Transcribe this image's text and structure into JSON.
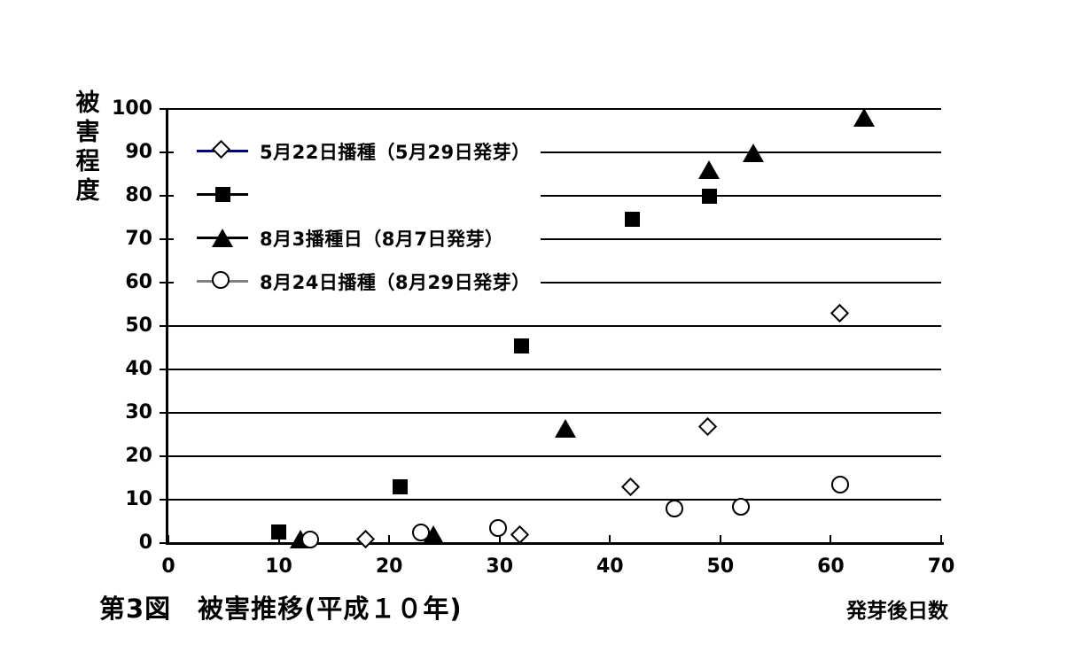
{
  "figure": {
    "title": "第3図　被害推移(平成１０年)",
    "y_axis_title": "被害程度",
    "x_axis_unit": "発芽後日数"
  },
  "chart_data": {
    "type": "scatter",
    "title": "第3図　被害推移(平成１０年)",
    "xlabel": "発芽後日数",
    "ylabel": "被害程度",
    "xlim": [
      0,
      70
    ],
    "ylim": [
      0,
      100
    ],
    "x_ticks": [
      0,
      10,
      20,
      30,
      40,
      50,
      60,
      70
    ],
    "y_ticks": [
      0,
      10,
      20,
      30,
      40,
      50,
      60,
      70,
      80,
      90,
      100
    ],
    "grid": "horizontal",
    "legend_position": "upper-left-inside",
    "series": [
      {
        "name": "5月22日播種（5月29日発芽）",
        "marker": "diamond",
        "line_color": "#000080",
        "points": [
          [
            18,
            0.5
          ],
          [
            32,
            1.5
          ],
          [
            42,
            12.5
          ],
          [
            49,
            26.5
          ],
          [
            61,
            52.5
          ]
        ]
      },
      {
        "name": "",
        "marker": "square",
        "line_color": "#000000",
        "points": [
          [
            10,
            2.5
          ],
          [
            21,
            13
          ],
          [
            32,
            45.5
          ],
          [
            42,
            74.5
          ],
          [
            49,
            80
          ]
        ]
      },
      {
        "name": "8月3播種日（8月7日発芽）",
        "marker": "triangle",
        "line_color": "#000000",
        "points": [
          [
            12,
            1
          ],
          [
            24,
            2
          ],
          [
            36,
            26.5
          ],
          [
            49,
            86
          ],
          [
            53,
            90
          ],
          [
            63,
            98
          ]
        ]
      },
      {
        "name": "8月24日播種（8月29日発芽）",
        "marker": "circle",
        "line_color": "#808080",
        "points": [
          [
            13,
            0.5
          ],
          [
            23,
            2
          ],
          [
            30,
            3
          ],
          [
            46,
            7.5
          ],
          [
            52,
            8
          ],
          [
            61,
            13
          ]
        ]
      }
    ]
  }
}
